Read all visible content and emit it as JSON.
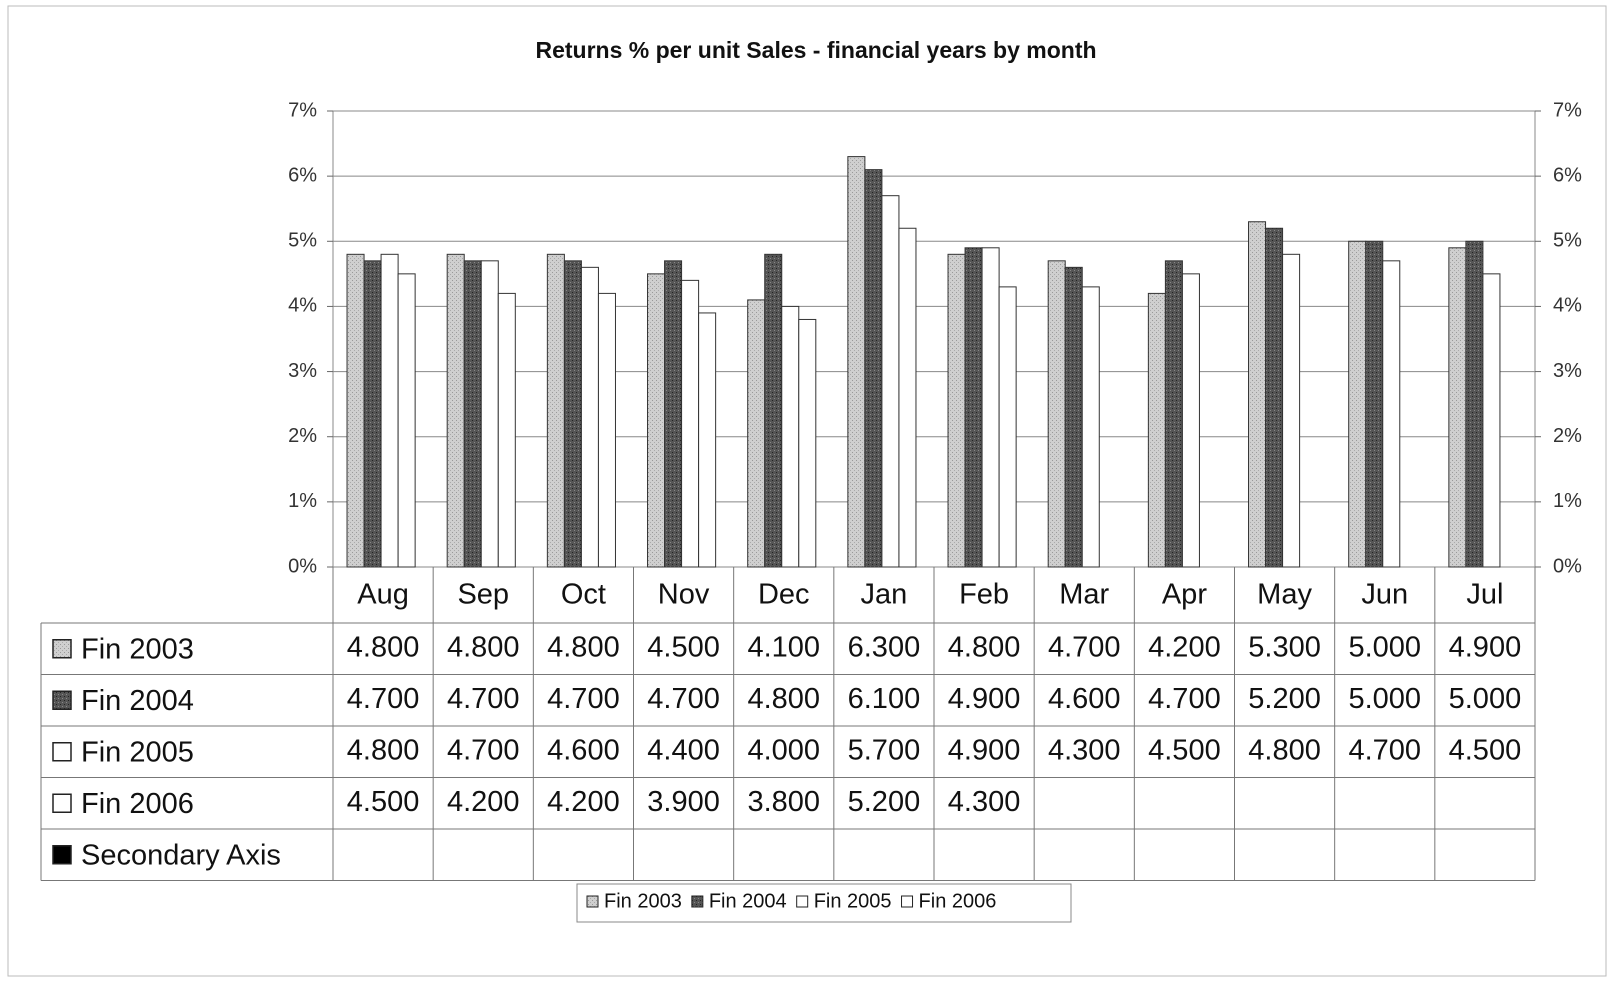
{
  "chart_data": {
    "type": "bar",
    "title": "Returns % per unit Sales - financial years by month",
    "categories": [
      "Aug",
      "Sep",
      "Oct",
      "Nov",
      "Dec",
      "Jan",
      "Feb",
      "Mar",
      "Apr",
      "May",
      "Jun",
      "Jul"
    ],
    "series": [
      {
        "name": "Fin 2003",
        "color": "#c4c4c4",
        "values": [
          4.8,
          4.8,
          4.8,
          4.5,
          4.1,
          6.3,
          4.8,
          4.7,
          4.2,
          5.3,
          5.0,
          4.9
        ],
        "value_labels": [
          "4.800",
          "4.800",
          "4.800",
          "4.500",
          "4.100",
          "6.300",
          "4.800",
          "4.700",
          "4.200",
          "5.300",
          "5.000",
          "4.900"
        ]
      },
      {
        "name": "Fin 2004",
        "color": "#4d4d4d",
        "values": [
          4.7,
          4.7,
          4.7,
          4.7,
          4.8,
          6.1,
          4.9,
          4.6,
          4.7,
          5.2,
          5.0,
          5.0
        ],
        "value_labels": [
          "4.700",
          "4.700",
          "4.700",
          "4.700",
          "4.800",
          "6.100",
          "4.900",
          "4.600",
          "4.700",
          "5.200",
          "5.000",
          "5.000"
        ]
      },
      {
        "name": "Fin 2005",
        "color": "#ffffff",
        "values": [
          4.8,
          4.7,
          4.6,
          4.4,
          4.0,
          5.7,
          4.9,
          4.3,
          4.5,
          4.8,
          4.7,
          4.5
        ],
        "value_labels": [
          "4.800",
          "4.700",
          "4.600",
          "4.400",
          "4.000",
          "5.700",
          "4.900",
          "4.300",
          "4.500",
          "4.800",
          "4.700",
          "4.500"
        ]
      },
      {
        "name": "Fin 2006",
        "color": "#ffffff",
        "values": [
          4.5,
          4.2,
          4.2,
          3.9,
          3.8,
          5.2,
          4.3,
          null,
          null,
          null,
          null,
          null
        ],
        "value_labels": [
          "4.500",
          "4.200",
          "4.200",
          "3.900",
          "3.800",
          "5.200",
          "4.300",
          null,
          null,
          null,
          null,
          null
        ]
      },
      {
        "name": "Secondary Axis",
        "color": "#000000",
        "axis": "y2",
        "values": [
          null,
          null,
          null,
          null,
          null,
          null,
          null,
          null,
          null,
          null,
          null,
          null
        ]
      }
    ],
    "ylim": [
      0,
      7
    ],
    "yticks": [
      {
        "value": 0,
        "label": "0%"
      },
      {
        "value": 1,
        "label": "1%"
      },
      {
        "value": 2,
        "label": "2%"
      },
      {
        "value": 3,
        "label": "3%"
      },
      {
        "value": 4,
        "label": "4%"
      },
      {
        "value": 5,
        "label": "5%"
      },
      {
        "value": 6,
        "label": "6%"
      },
      {
        "value": 7,
        "label": "7%"
      }
    ],
    "y2lim": [
      0,
      7
    ],
    "y2ticks": [
      {
        "value": 0,
        "label": "0%"
      },
      {
        "value": 1,
        "label": "1%"
      },
      {
        "value": 2,
        "label": "2%"
      },
      {
        "value": 3,
        "label": "3%"
      },
      {
        "value": 4,
        "label": "4%"
      },
      {
        "value": 5,
        "label": "5%"
      },
      {
        "value": 6,
        "label": "6%"
      },
      {
        "value": 7,
        "label": "7%"
      }
    ],
    "grid": true,
    "legend": "bottom"
  }
}
